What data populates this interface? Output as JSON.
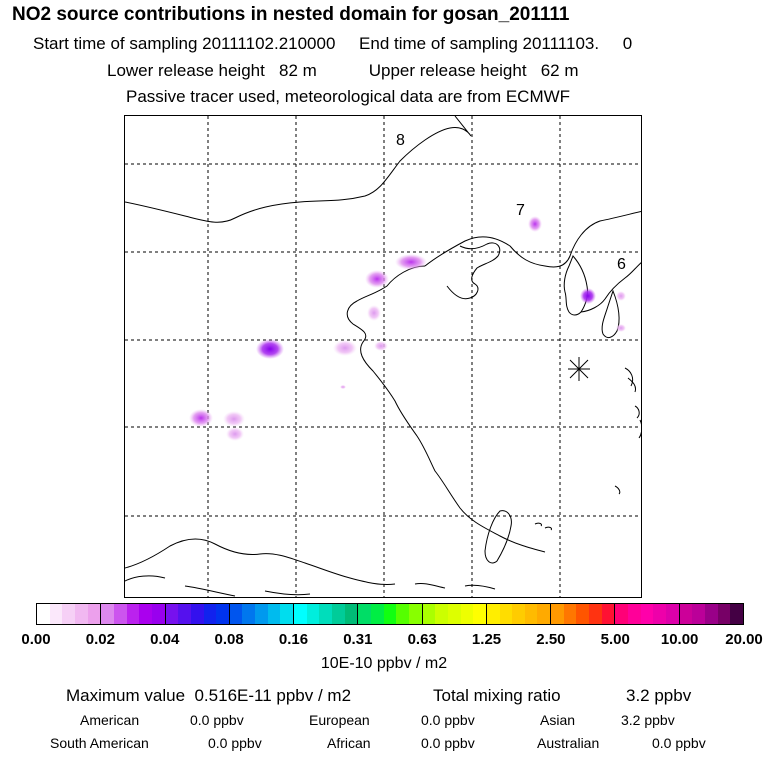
{
  "title": "NO2 source contributions in nested domain for gosan_201111",
  "line1": "Start time of sampling 20111102.210000     End time of sampling 20111103.     0",
  "line2": "Lower release height   82 m           Upper release height   62 m",
  "line3": "Passive tracer used, meteorological data are from ECMWF",
  "map": {
    "labels": [
      "8",
      "7",
      "6"
    ],
    "station_marker": "star-burst"
  },
  "colorbar": {
    "ticks": [
      "0.00",
      "0.02",
      "0.04",
      "0.08",
      "0.16",
      "0.31",
      "0.63",
      "1.25",
      "2.50",
      "5.00",
      "10.00",
      "20.00"
    ],
    "segments": [
      [
        "#ffffff",
        "#fbe8fb",
        "#f6d0f6",
        "#f1b8f1",
        "#eca0ec"
      ],
      [
        "#dd88ee",
        "#cc55ee",
        "#bb22ee",
        "#aa00ee",
        "#9900ee"
      ],
      [
        "#7711ee",
        "#5511ee",
        "#3311ee",
        "#1122ee",
        "#0033ee"
      ],
      [
        "#0055ee",
        "#0077ee",
        "#0099ee",
        "#00bbee",
        "#00ddee"
      ],
      [
        "#00ffff",
        "#00eedd",
        "#00ddbb",
        "#00cc99",
        "#00bb77"
      ],
      [
        "#00dd66",
        "#00ee44",
        "#11ff11",
        "#55ff00",
        "#88ff00"
      ],
      [
        "#aaff00",
        "#ccff00",
        "#ddff00",
        "#eeff00",
        "#ffff00"
      ],
      [
        "#ffee00",
        "#ffdd00",
        "#ffcc00",
        "#ffbb00",
        "#ffaa00"
      ],
      [
        "#ff9900",
        "#ff7700",
        "#ff5500",
        "#ff3311",
        "#ff1133"
      ],
      [
        "#ff0077",
        "#ff0099",
        "#ff00aa",
        "#ee00aa",
        "#dd00aa"
      ],
      [
        "#cc0099",
        "#bb0099",
        "#990088",
        "#770066",
        "#440044"
      ]
    ],
    "units": "10E-10 ppbv / m2"
  },
  "summary": {
    "max_label": "Maximum value  0.516E-11 ppbv / m2",
    "total_label": "Total mixing ratio",
    "total_value": "3.2 ppbv",
    "regions": [
      {
        "name": "American",
        "value": "0.0 ppbv"
      },
      {
        "name": "European",
        "value": "0.0 ppbv"
      },
      {
        "name": "Asian",
        "value": "3.2 ppbv"
      },
      {
        "name": "South American",
        "value": "0.0 ppbv"
      },
      {
        "name": "African",
        "value": "0.0 ppbv"
      },
      {
        "name": "Australian",
        "value": "0.0 ppbv"
      }
    ]
  }
}
